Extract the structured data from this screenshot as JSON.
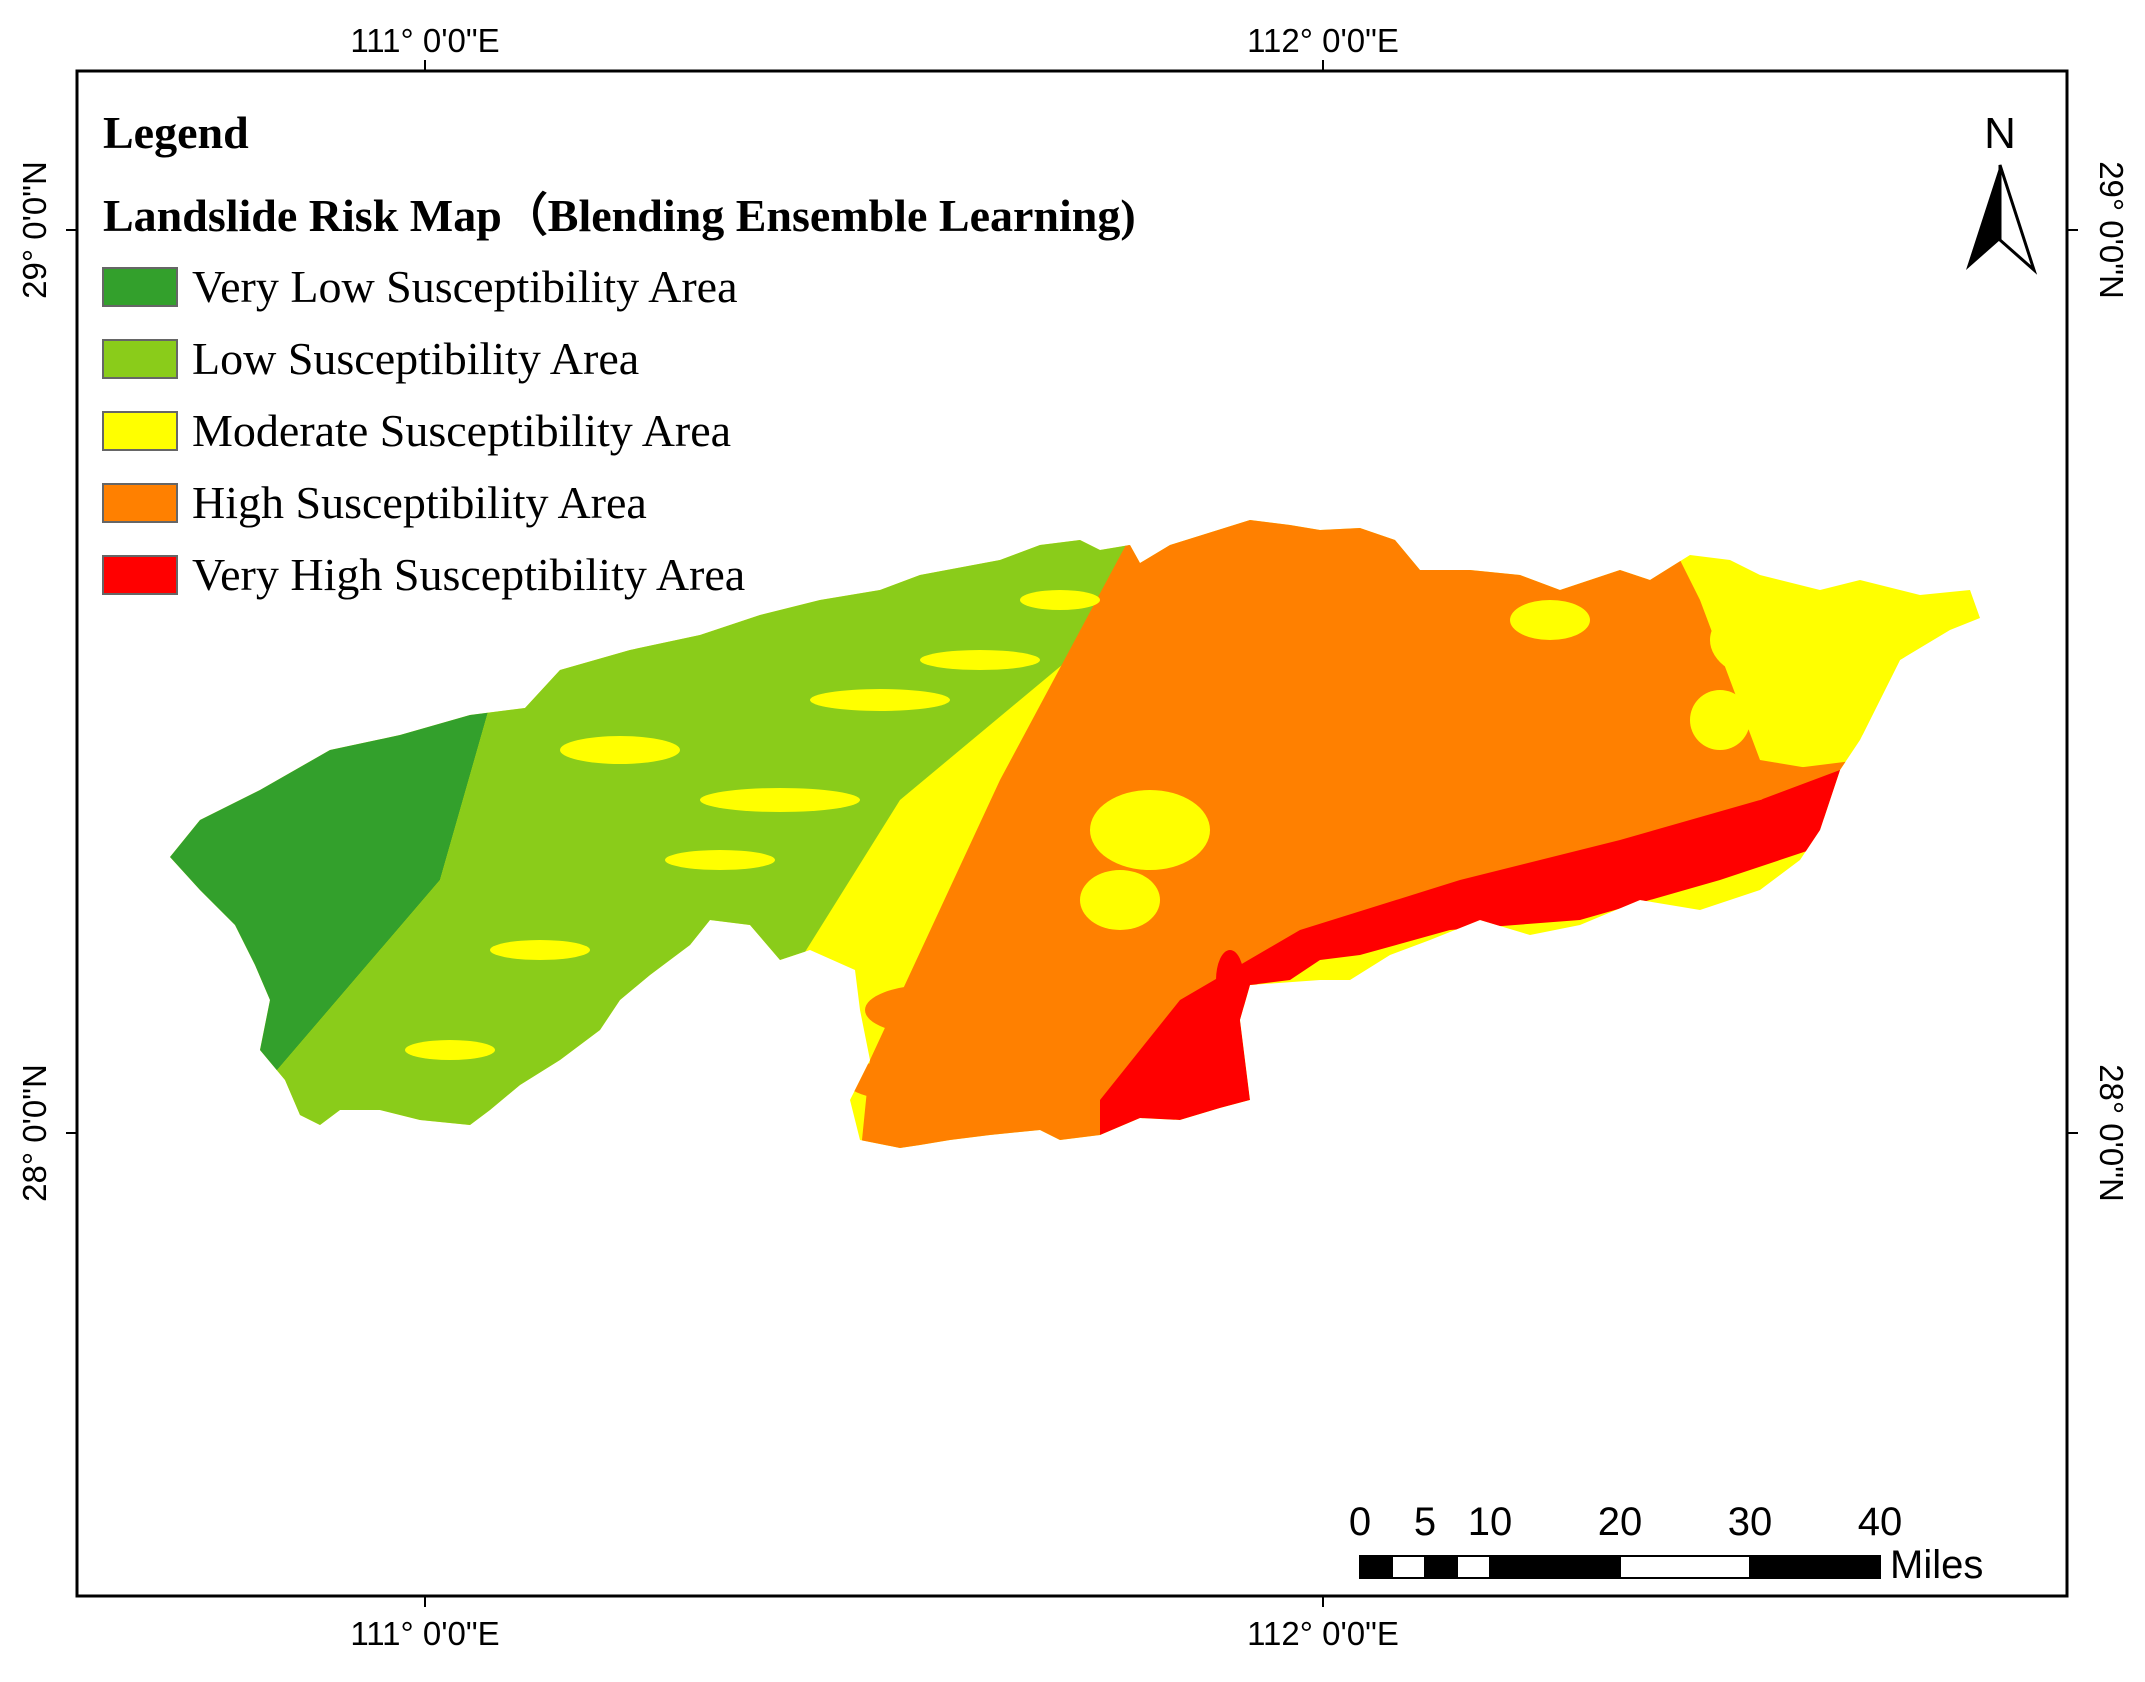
{
  "legend": {
    "heading": "Legend",
    "map_title": "Landslide Risk Map（Blending Ensemble Learning)",
    "items": [
      {
        "label": "Very Low Susceptibility Area",
        "color": "#33A02C"
      },
      {
        "label": "Low Susceptibility Area",
        "color": "#8ACC1A"
      },
      {
        "label": "Moderate Susceptibility Area",
        "color": "#FFFF00"
      },
      {
        "label": "High Susceptibility Area",
        "color": "#FF8000"
      },
      {
        "label": "Very High Susceptibility Area",
        "color": "#FF0000"
      }
    ]
  },
  "graticule": {
    "top": [
      "111° 0'0\"E",
      "112° 0'0\"E"
    ],
    "bottom": [
      "111° 0'0\"E",
      "112° 0'0\"E"
    ],
    "left": [
      "29° 0'0\"N",
      "28° 0'0\"N"
    ],
    "right": [
      "29° 0'0\"N",
      "28° 0'0\"N"
    ]
  },
  "north_arrow": {
    "label": "N"
  },
  "scale_bar": {
    "ticks": [
      "0",
      "5",
      "10",
      "20",
      "30",
      "40"
    ],
    "unit": "Miles"
  }
}
